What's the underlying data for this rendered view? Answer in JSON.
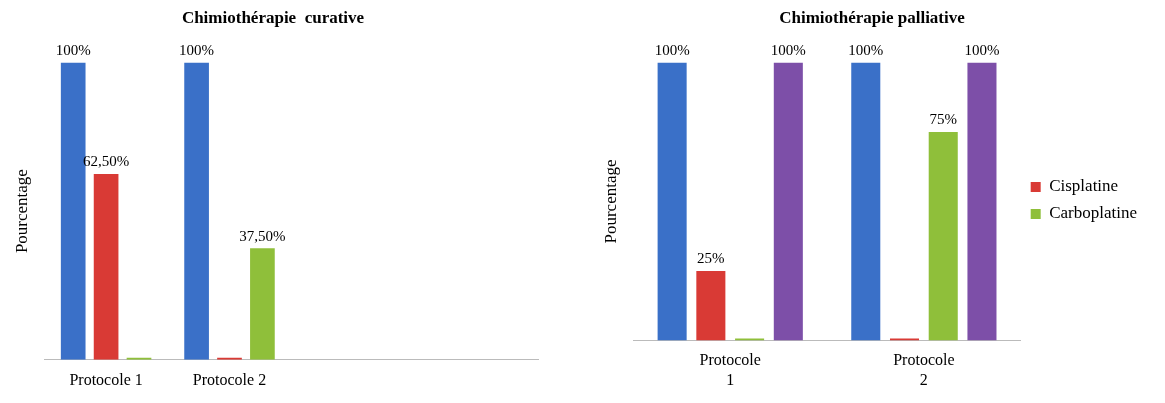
{
  "chart_data": [
    {
      "type": "bar",
      "title": "Chimiothérapie  curative",
      "ylabel": "Pourcentage",
      "categories": [
        "Protocole 1",
        "Protocole 2",
        null,
        null
      ],
      "tick_labels": "x",
      "legend": false,
      "series": [
        {
          "color": "#3a70c8",
          "values": [
            100,
            100,
            null,
            null
          ],
          "value_labels": [
            "100%",
            "100%",
            null,
            null
          ]
        },
        {
          "color": "#d93a35",
          "values": [
            62.5,
            0,
            null,
            null
          ],
          "value_labels": [
            "62,50%",
            null,
            null,
            null
          ]
        },
        {
          "color": "#8fbf3a",
          "values": [
            0,
            37.5,
            null,
            null
          ],
          "value_labels": [
            null,
            "37,50%",
            null,
            null
          ]
        }
      ]
    },
    {
      "type": "bar",
      "title": "Chimiothérapie palliative",
      "ylabel": "Pourcentage",
      "categories": [
        "Protocole 1",
        "Protocole 2"
      ],
      "tick_labels": "x",
      "legend": "right",
      "series": [
        {
          "color": "#3a70c8",
          "values": [
            100,
            100
          ],
          "value_labels": [
            "100%",
            "100%"
          ]
        },
        {
          "name": "Cisplatine",
          "color": "#d93a35",
          "values": [
            25,
            0
          ],
          "value_labels": [
            "25%",
            null
          ]
        },
        {
          "name": "Carboplatine",
          "color": "#8fbf3a",
          "values": [
            0,
            75
          ],
          "value_labels": [
            null,
            "75%"
          ]
        },
        {
          "color": "#7d4fa8",
          "values": [
            100,
            100
          ],
          "value_labels": [
            "100%",
            "100%"
          ]
        }
      ]
    }
  ]
}
